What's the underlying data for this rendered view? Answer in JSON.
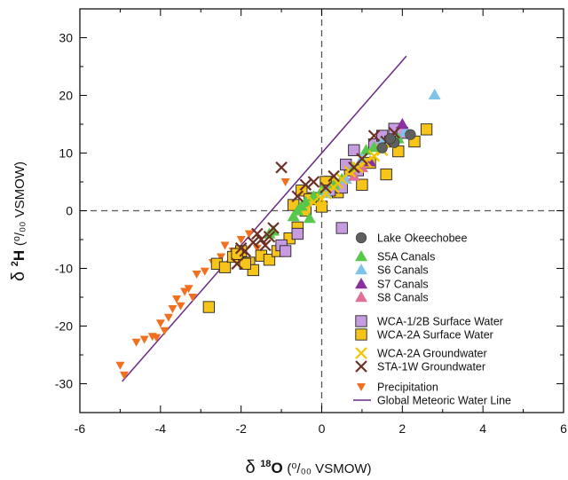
{
  "chart_data": {
    "type": "scatter",
    "xlabel": {
      "symbol": "δ",
      "iso": "18",
      "element": "O",
      "units": "(⁰/₀₀ VSMOW)"
    },
    "ylabel": {
      "symbol": "δ",
      "iso": "2",
      "element": "H",
      "units": "(⁰/₀₀ VSMOW)"
    },
    "xlim": [
      -6,
      6
    ],
    "ylim": [
      -35,
      35
    ],
    "xticks": [
      -6,
      -4,
      -2,
      0,
      2,
      4,
      6
    ],
    "yticks": [
      -30,
      -20,
      -10,
      0,
      10,
      20,
      30
    ],
    "grid": false,
    "reference_lines": {
      "x": 0,
      "y": 0,
      "style": "dashed"
    },
    "legend_position": "lower-right",
    "colors": {
      "lake": "#5f5f5f",
      "s5a": "#58c84a",
      "s6": "#7fc4e8",
      "s7": "#8a2fa0",
      "s8": "#e0709a",
      "wca1": "#c79be0",
      "wca2_surface": "#f7c51a",
      "wca2_ground": "#f5c400",
      "sta1w": "#6b2f25",
      "precip": "#f07020",
      "gmwl": "#6a2a86"
    },
    "series": [
      {
        "name": "Lake Okeechobee",
        "marker": "circle",
        "color_key": "lake",
        "x": [
          1.8,
          2.2,
          1.7,
          1.5
        ],
        "y": [
          11.8,
          13.2,
          12.5,
          10.9
        ]
      },
      {
        "name": "S5A Canals",
        "marker": "triangle",
        "color_key": "s5a",
        "x": [
          -1.3,
          -1.2,
          -0.7,
          -0.6,
          -0.5,
          -0.4,
          -0.3,
          -0.2,
          0.0,
          0.3,
          0.5,
          0.8,
          1.0,
          1.1,
          1.3,
          1.5,
          1.9
        ],
        "y": [
          -4.0,
          -3.5,
          -1.0,
          0.0,
          0.8,
          1.5,
          -1.3,
          2.5,
          3.5,
          4.5,
          5.5,
          7.5,
          9.0,
          10.5,
          11.0,
          12.0,
          12.5
        ]
      },
      {
        "name": "S6 Canals",
        "marker": "triangle",
        "color_key": "s6",
        "x": [
          0.1,
          0.6,
          1.0,
          1.5,
          2.1,
          2.8
        ],
        "y": [
          3.0,
          5.5,
          9.0,
          12.0,
          13.8,
          20.1
        ]
      },
      {
        "name": "S7 Canals",
        "marker": "triangle",
        "color_key": "s7",
        "x": [
          1.2,
          2.0
        ],
        "y": [
          8.5,
          15.0
        ]
      },
      {
        "name": "S8 Canals",
        "marker": "triangle",
        "color_key": "s8",
        "x": [
          0.8,
          1.0
        ],
        "y": [
          6.0,
          7.5
        ]
      },
      {
        "name": "WCA-1/2B Surface Water",
        "marker": "square",
        "color_key": "wca1",
        "x": [
          -1.0,
          -0.9,
          -0.6,
          0.2,
          0.5,
          0.6,
          0.8,
          0.9,
          1.3,
          1.5,
          1.8,
          1.7,
          2.0,
          0.5
        ],
        "y": [
          -6.0,
          -7.0,
          -4.0,
          3.5,
          4.0,
          8.0,
          10.5,
          7.0,
          11.5,
          13.0,
          14.2,
          12.0,
          13.5,
          -3.0
        ]
      },
      {
        "name": "WCA-2A Surface Water",
        "marker": "square",
        "color_key": "wca2_surface",
        "x": [
          -2.8,
          -2.6,
          -2.4,
          -2.2,
          -2.0,
          -1.8,
          -1.7,
          -1.5,
          -1.3,
          -1.1,
          -0.8,
          -0.6,
          -0.5,
          -0.4,
          -0.2,
          0.0,
          0.2,
          0.4,
          0.7,
          1.0,
          1.2,
          1.6,
          1.9,
          2.3,
          2.6,
          -0.7,
          -0.3,
          0.1,
          -1.9,
          -2.1
        ],
        "y": [
          -16.7,
          -9.2,
          -9.8,
          -8.0,
          -7.0,
          -9.0,
          -10.3,
          -7.8,
          -8.5,
          -7.0,
          -4.8,
          -2.9,
          3.5,
          0.0,
          2.2,
          0.7,
          5.0,
          3.2,
          7.0,
          4.5,
          8.3,
          6.3,
          10.3,
          12.0,
          14.1,
          1.0,
          2.0,
          5.0,
          -9.2,
          -7.5
        ]
      },
      {
        "name": "WCA-2A Groundwater",
        "marker": "x",
        "color_key": "wca2_ground",
        "x": [
          -0.2,
          0.1,
          0.3,
          0.5,
          0.7,
          0.9,
          1.1,
          1.3,
          1.5,
          1.7,
          0.0,
          0.4
        ],
        "y": [
          1.5,
          3.0,
          4.0,
          5.5,
          6.8,
          7.5,
          8.5,
          9.5,
          10.5,
          11.5,
          2.0,
          4.8
        ]
      },
      {
        "name": "STA-1W Groundwater",
        "marker": "x",
        "color_key": "sta1w",
        "x": [
          -2.1,
          -1.9,
          -1.7,
          -1.6,
          -1.5,
          -1.3,
          -1.2,
          -1.0,
          -0.6,
          -0.4,
          -0.2,
          0.1,
          0.3,
          0.8,
          1.0,
          1.3,
          1.6,
          1.8,
          -2.0,
          -1.4
        ],
        "y": [
          -9.2,
          -7.0,
          -5.5,
          -4.0,
          -5.0,
          -4.5,
          -3.0,
          7.5,
          2.5,
          4.5,
          5.0,
          4.0,
          6.0,
          7.5,
          9.0,
          13.0,
          12.0,
          13.5,
          -6.5,
          -6.0
        ]
      },
      {
        "name": "Precipitation",
        "marker": "triangle-down",
        "color_key": "precip",
        "x": [
          -5.0,
          -4.9,
          -4.6,
          -4.4,
          -4.2,
          -4.0,
          -4.1,
          -3.9,
          -3.8,
          -3.6,
          -3.5,
          -3.4,
          -3.3,
          -3.1,
          -2.9,
          -2.7,
          -2.5,
          -2.4,
          -2.2,
          -2.0,
          -1.8,
          -1.6,
          -0.9,
          -3.7,
          -3.2
        ],
        "y": [
          -26.8,
          -28.5,
          -22.8,
          -22.3,
          -21.8,
          -19.5,
          -22.0,
          -20.8,
          -18.5,
          -15.3,
          -16.5,
          -14.0,
          -13.5,
          -11.0,
          -10.5,
          -9.0,
          -8.0,
          -6.0,
          -7.0,
          -5.0,
          -4.0,
          -6.5,
          5.0,
          -17.0,
          -15.0
        ]
      }
    ],
    "lines": [
      {
        "name": "Global Meteoric Water Line",
        "color_key": "gmwl",
        "x": [
          -4.95,
          2.1
        ],
        "y": [
          -29.6,
          26.8
        ]
      }
    ]
  }
}
